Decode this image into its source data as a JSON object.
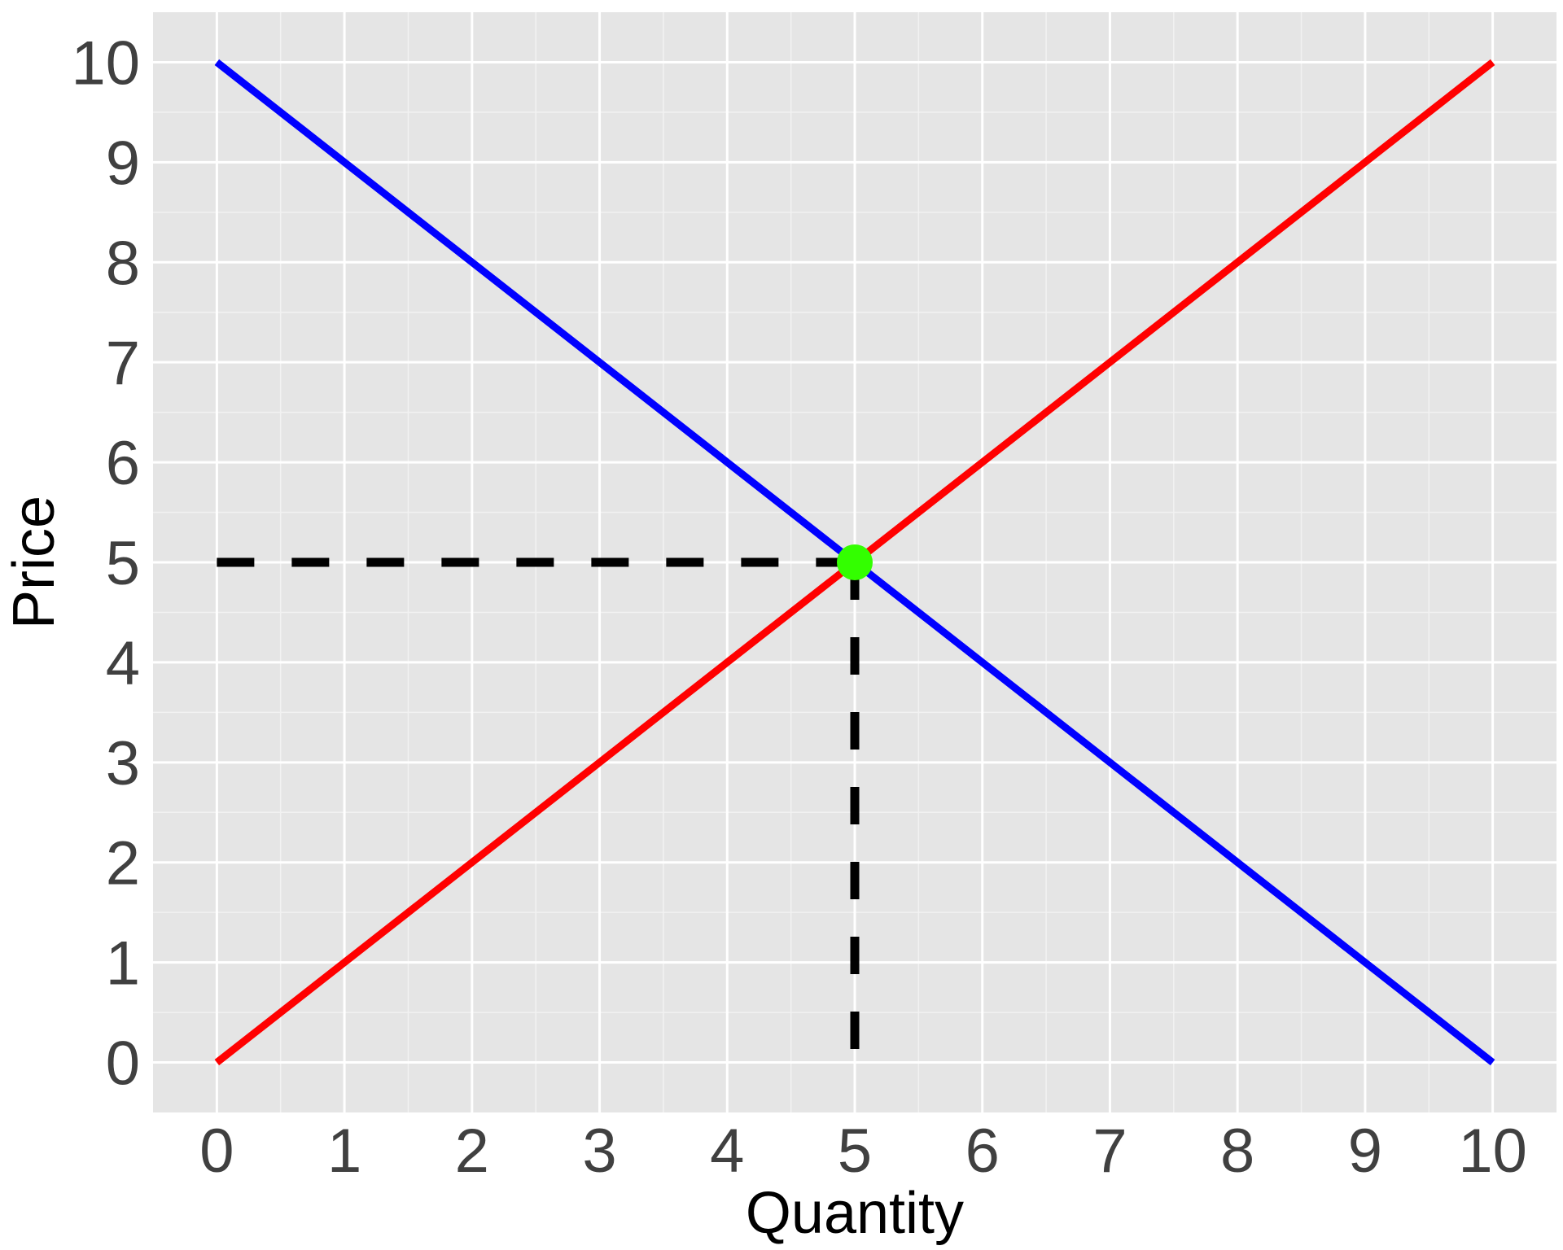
{
  "chart_data": {
    "type": "line",
    "title": "",
    "xlabel": "Quantity",
    "ylabel": "Price",
    "xlim": [
      -0.5,
      10.5
    ],
    "ylim": [
      -0.5,
      10.5
    ],
    "x_ticks": [
      0,
      1,
      2,
      3,
      4,
      5,
      6,
      7,
      8,
      9,
      10
    ],
    "y_ticks": [
      0,
      1,
      2,
      3,
      4,
      5,
      6,
      7,
      8,
      9,
      10
    ],
    "x_tick_labels": [
      "0",
      "1",
      "2",
      "3",
      "4",
      "5",
      "6",
      "7",
      "8",
      "9",
      "10"
    ],
    "y_tick_labels": [
      "0",
      "1",
      "2",
      "3",
      "4",
      "5",
      "6",
      "7",
      "8",
      "9",
      "10"
    ],
    "grid": true,
    "legend": "none",
    "series": [
      {
        "color": "#0000ff",
        "x": [
          0,
          10
        ],
        "y": [
          10,
          0
        ]
      },
      {
        "color": "#ff0000",
        "x": [
          0,
          10
        ],
        "y": [
          0,
          10
        ]
      }
    ],
    "reference_lines": [
      {
        "style": "dashed",
        "color": "#000000",
        "x": [
          0,
          5
        ],
        "y": [
          5,
          5
        ]
      },
      {
        "style": "dashed",
        "color": "#000000",
        "x": [
          5,
          5
        ],
        "y": [
          5,
          0
        ]
      }
    ],
    "points": [
      {
        "x": 5,
        "y": 5,
        "color": "#33ff00"
      }
    ]
  },
  "colors": {
    "panel_background": "#e5e5e5",
    "grid_major": "#ffffff",
    "grid_minor": "#f2f2f2"
  }
}
